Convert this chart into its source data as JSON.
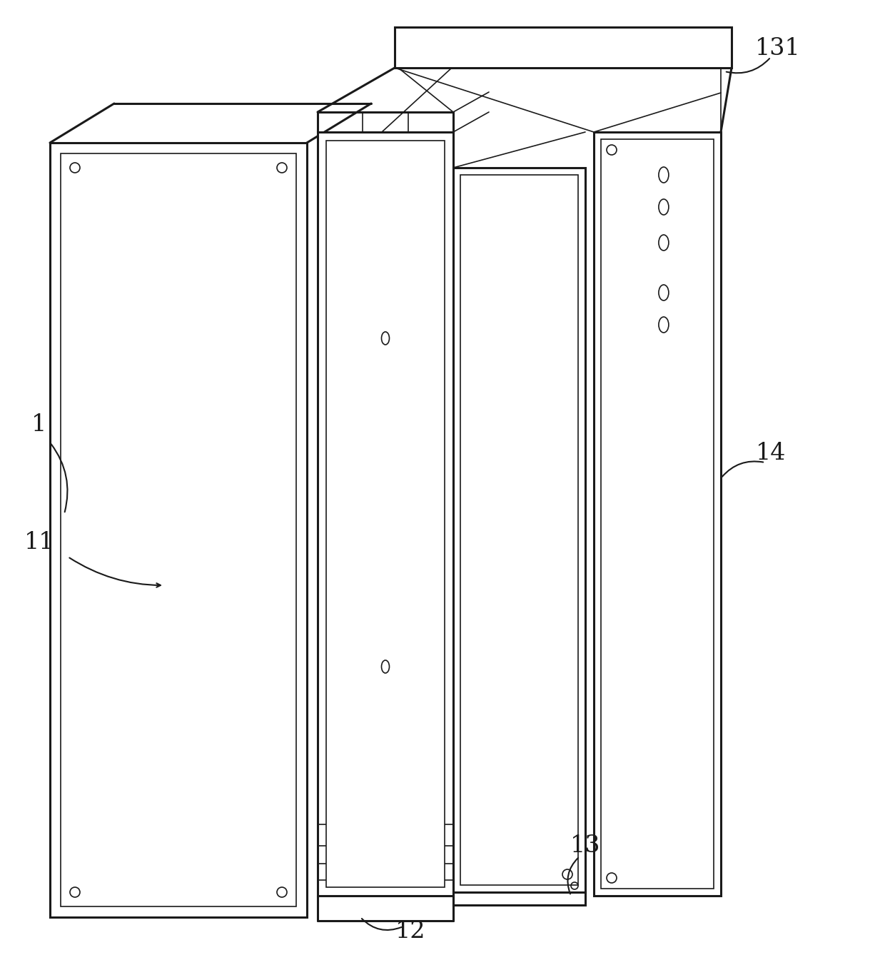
{
  "bg_color": "#ffffff",
  "line_color": "#1a1a1a",
  "lw_thin": 1.2,
  "lw_thick": 2.2,
  "label_fontsize": 24,
  "annotation_color": "#1a1a1a"
}
